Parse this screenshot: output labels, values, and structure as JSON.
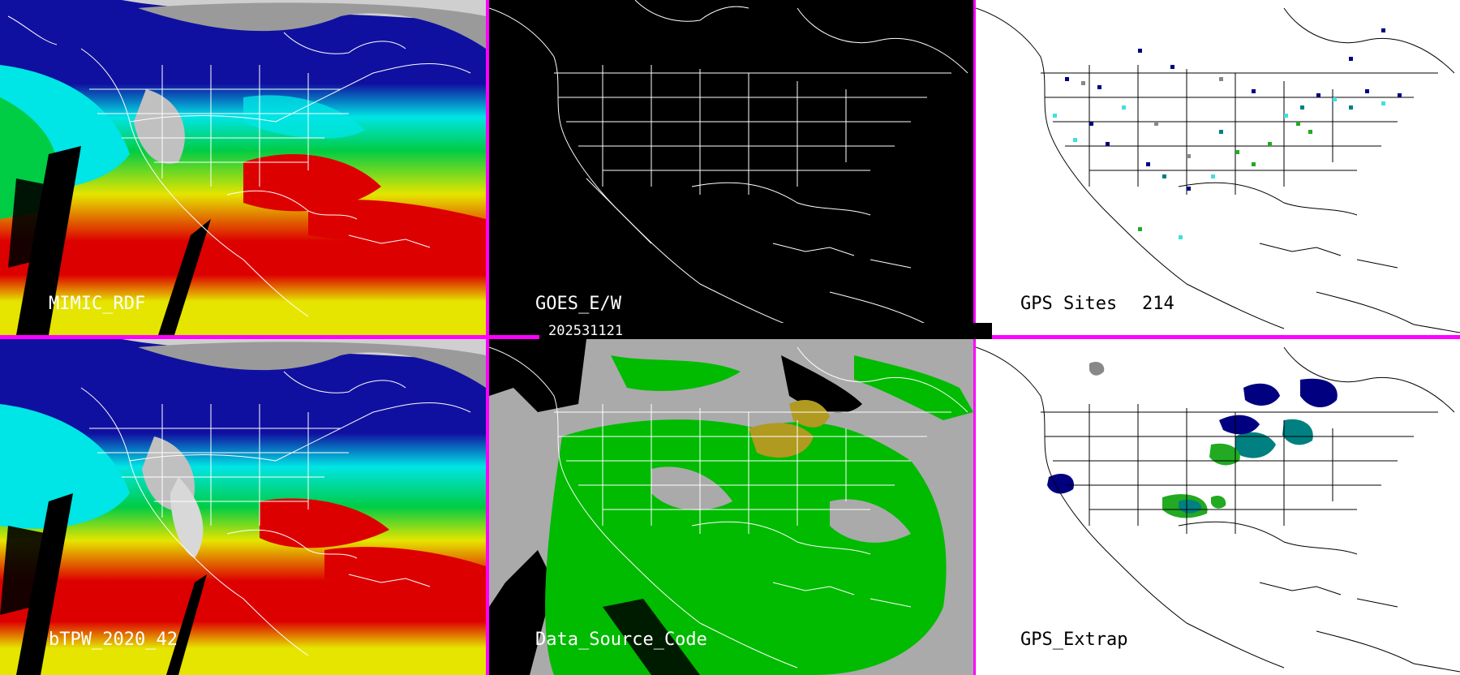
{
  "panels": {
    "p1": {
      "label": "MIMIC_RDF",
      "background": "#000000",
      "label_color": "#ffffff"
    },
    "p2": {
      "label": "GOES_E/W",
      "background": "#000000",
      "label_color": "#ffffff"
    },
    "p3": {
      "label": "GPS Sites",
      "count": "214",
      "background": "#ffffff",
      "label_color": "#000000"
    },
    "p4": {
      "label": "bTPW_2020_42",
      "background": "#000000",
      "label_color": "#ffffff"
    },
    "p5": {
      "label": "Data_Source_Code",
      "background": "#aaaaaa",
      "label_color": "#ffffff"
    },
    "p6": {
      "label": "GPS_Extrap",
      "background": "#ffffff",
      "label_color": "#000000"
    }
  },
  "date_label": "202531121",
  "colors": {
    "divider": "#ff00ff",
    "tpw_dry": "#1010a0",
    "tpw_mid": "#00e5e5",
    "tpw_green": "#00cc44",
    "tpw_yellow": "#e5e500",
    "tpw_red": "#dd0000",
    "cloud_gray": "#b0b0b0",
    "source_green": "#00bb00",
    "source_olive": "#b09a20",
    "gps_navy": "#000080",
    "gps_teal": "#008080",
    "gps_cyan": "#40e0e0",
    "gps_green": "#22aa22",
    "gps_gray": "#888888"
  }
}
